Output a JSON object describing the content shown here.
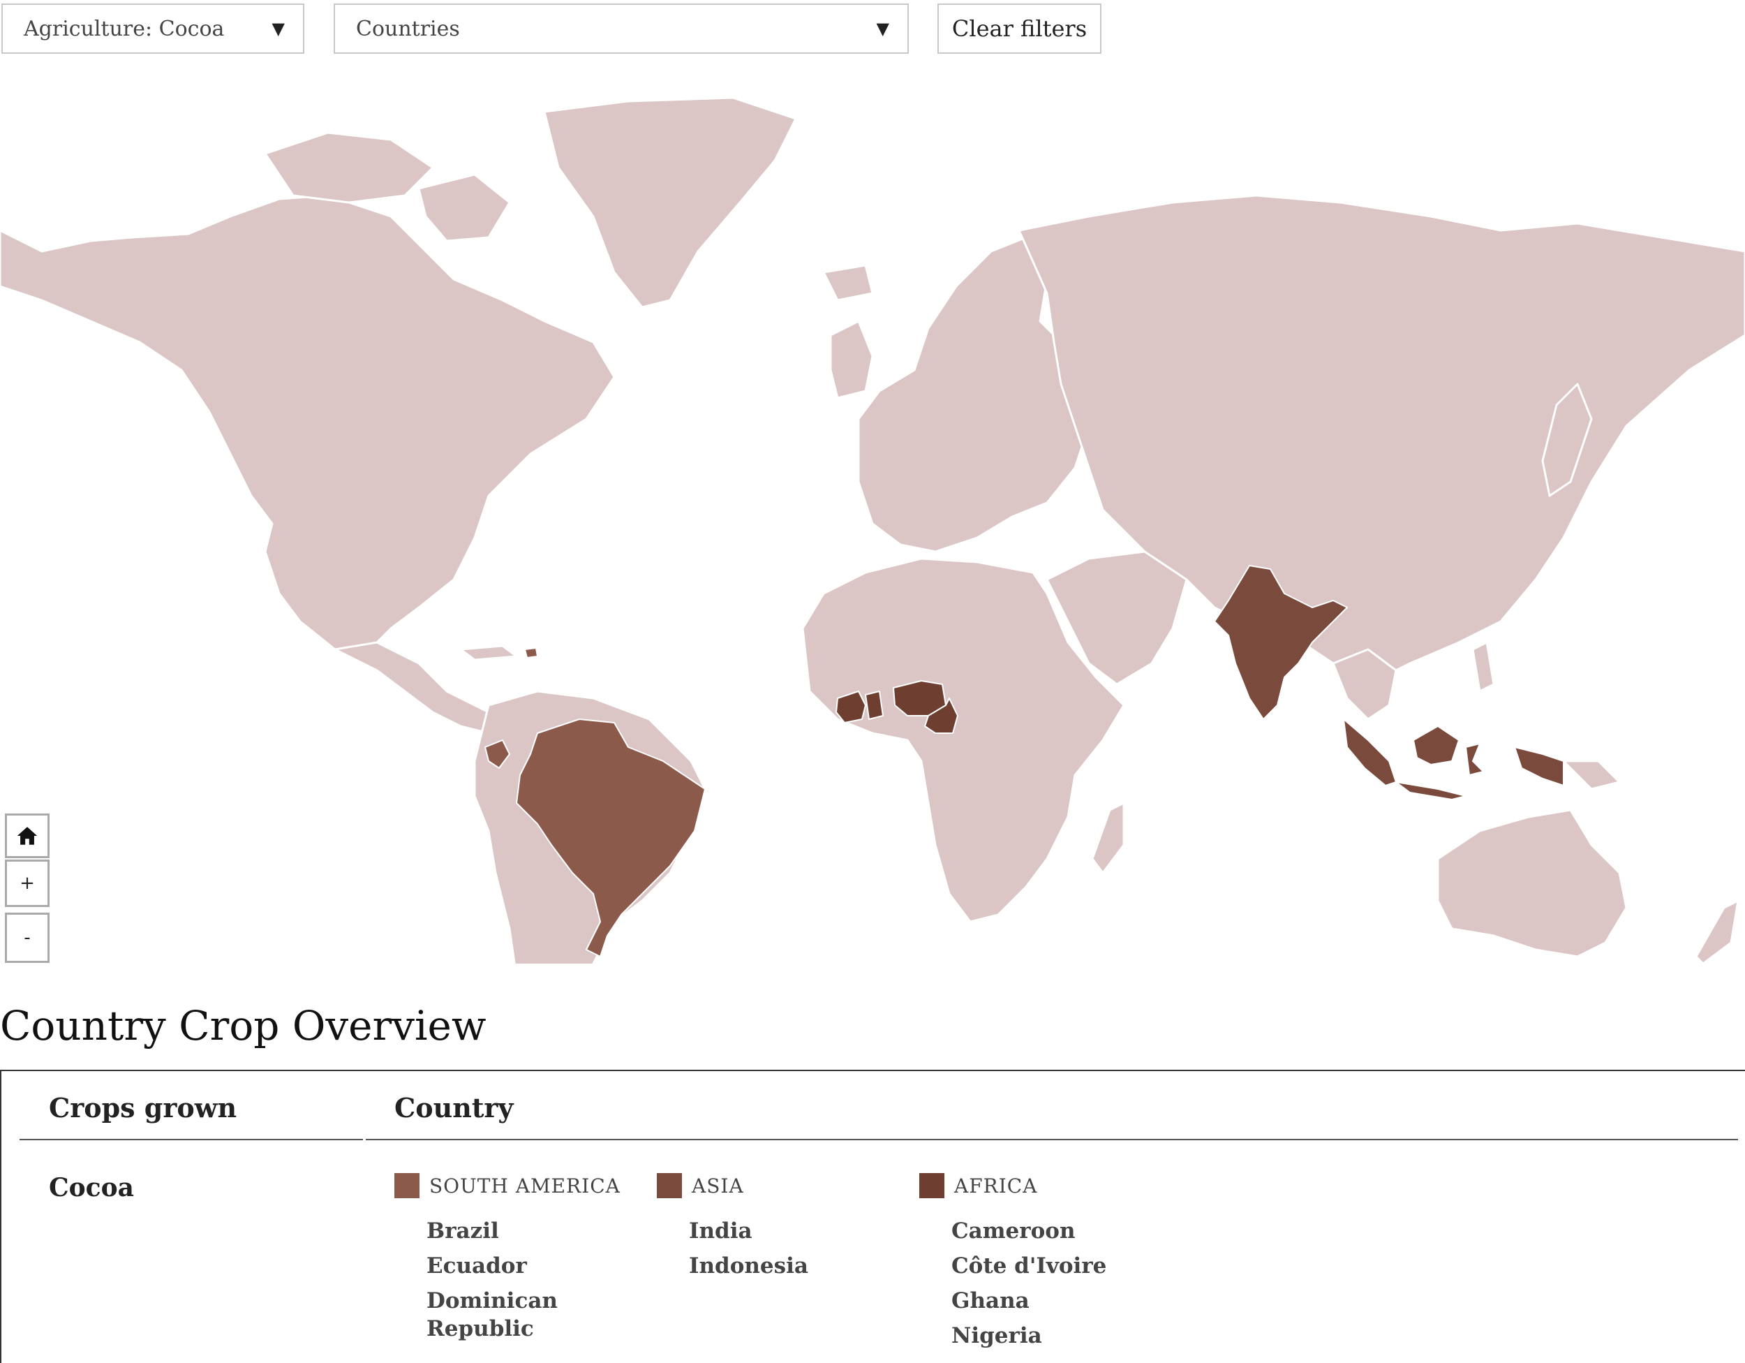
{
  "filters": {
    "crop_select": "Agriculture: Cocoa",
    "country_select": "Countries",
    "clear_label": "Clear filters"
  },
  "map": {
    "base_color": "#dbc5c5",
    "highlight_colors": {
      "south_america": "#8b5a4a",
      "asia": "#7a4a3c",
      "africa": "#6e3f30"
    },
    "highlighted_countries": [
      "Brazil",
      "Ecuador",
      "Dominican Republic",
      "India",
      "Indonesia",
      "Cameroon",
      "Côte d'Ivoire",
      "Ghana",
      "Nigeria"
    ],
    "controls": {
      "home_icon": "home-icon",
      "zoom_in": "+",
      "zoom_out": "-"
    }
  },
  "overview": {
    "title": "Country Crop Overview",
    "col_crops": "Crops grown",
    "col_country": "Country",
    "crop": "Cocoa",
    "regions": [
      {
        "name": "SOUTH AMERICA",
        "color": "#8b5a4a",
        "countries": [
          "Brazil",
          "Ecuador",
          "Dominican Republic"
        ]
      },
      {
        "name": "ASIA",
        "color": "#7a4a3c",
        "countries": [
          "India",
          "Indonesia"
        ]
      },
      {
        "name": "AFRICA",
        "color": "#6e3f30",
        "countries": [
          "Cameroon",
          "Côte d'Ivoire",
          "Ghana",
          "Nigeria"
        ]
      }
    ]
  }
}
